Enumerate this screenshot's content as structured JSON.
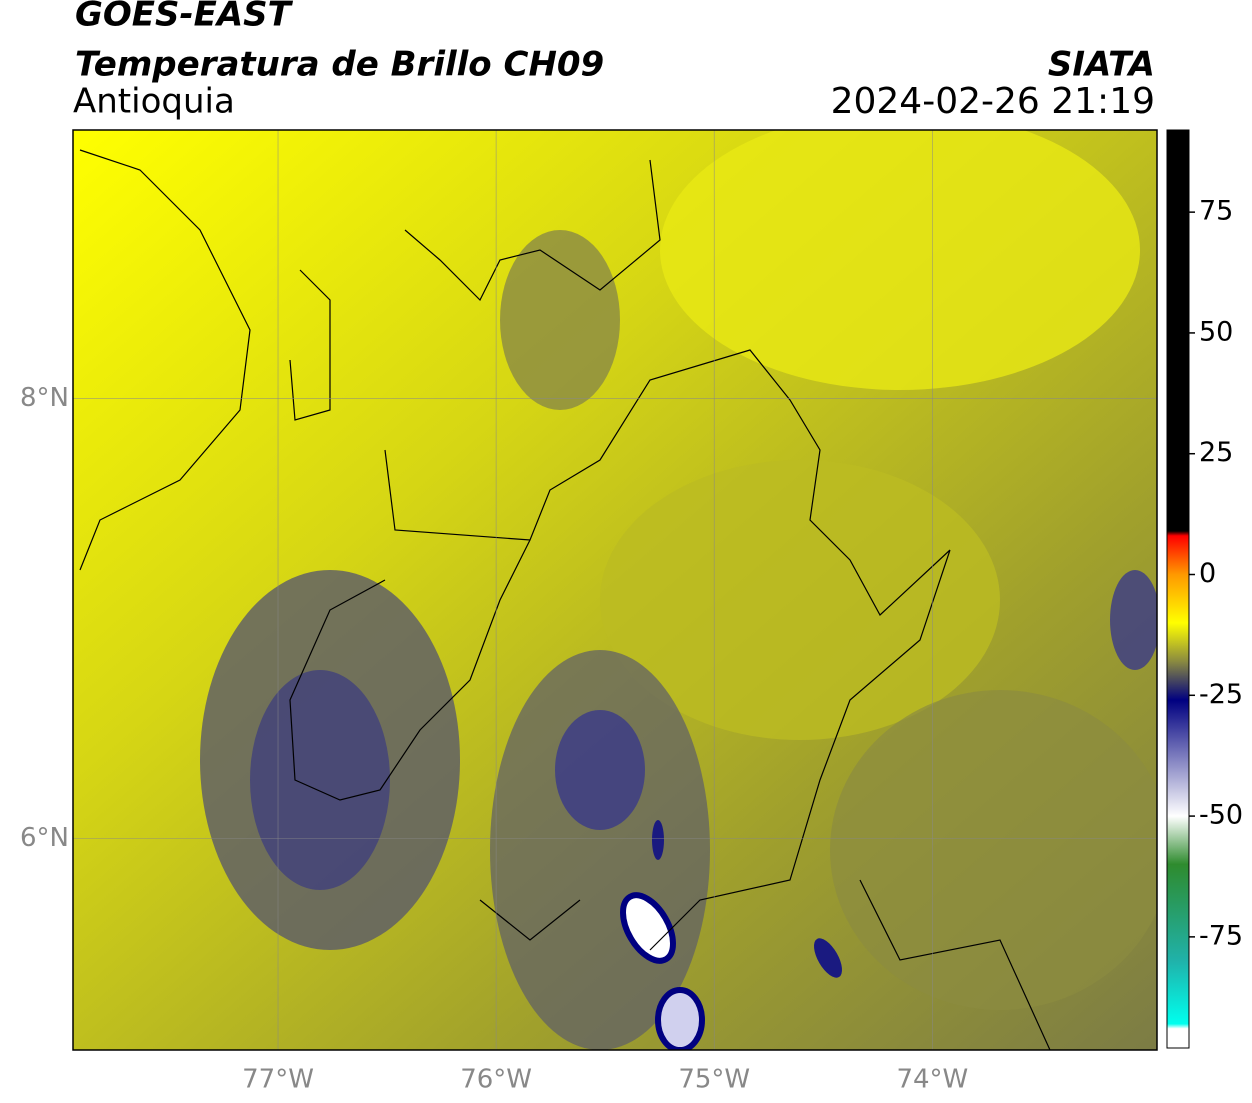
{
  "chart_data": {
    "type": "map",
    "title": "GOES-EAST",
    "subtitle": "Temperatura de Brillo CH09",
    "region": "Antioquia",
    "source": "SIATA",
    "datetime": "2024-02-26 21:19",
    "xlim": [
      -77.94,
      -72.97
    ],
    "ylim": [
      5.04,
      9.22
    ],
    "xticks": [
      {
        "value": -77,
        "label": "77°W"
      },
      {
        "value": -76,
        "label": "76°W"
      },
      {
        "value": -75,
        "label": "75°W"
      },
      {
        "value": -74,
        "label": "74°W"
      }
    ],
    "yticks": [
      {
        "value": 8,
        "label": "8°N"
      },
      {
        "value": 6,
        "label": "6°N"
      }
    ],
    "grid": true,
    "colorbar": {
      "lim": [
        -98,
        92
      ],
      "ticks": [
        75,
        50,
        25,
        0,
        -25,
        -50,
        -75
      ],
      "stops": [
        {
          "value": 92,
          "color": "#000000"
        },
        {
          "value": 9,
          "color": "#000000"
        },
        {
          "value": 8,
          "color": "#ff0000"
        },
        {
          "value": 0,
          "color": "#ff9900"
        },
        {
          "value": -10,
          "color": "#ffff00"
        },
        {
          "value": -18,
          "color": "#8a8a40"
        },
        {
          "value": -26,
          "color": "#000080"
        },
        {
          "value": -38,
          "color": "#8080c0"
        },
        {
          "value": -50,
          "color": "#ffffff"
        },
        {
          "value": -60,
          "color": "#2e8b2e"
        },
        {
          "value": -80,
          "color": "#20b2aa"
        },
        {
          "value": -93,
          "color": "#00ffee"
        },
        {
          "value": -94,
          "color": "#ffffff"
        },
        {
          "value": -98,
          "color": "#ffffff"
        }
      ]
    }
  }
}
